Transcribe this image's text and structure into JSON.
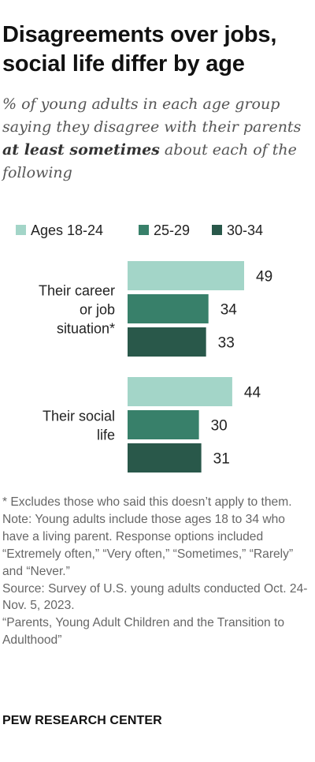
{
  "title": "Disagreements over jobs, social life differ by age",
  "subtitle": {
    "before": "% of young adults in each age group saying they disagree with their parents ",
    "emphasis": "at least sometimes",
    "after": " about each of the following"
  },
  "chart_data": {
    "type": "bar",
    "orientation": "horizontal",
    "categories": [
      "Their career or job situation*",
      "Their social life"
    ],
    "category_lines": [
      [
        "Their career",
        "or job",
        "situation*"
      ],
      [
        "Their social",
        "life"
      ]
    ],
    "series": [
      {
        "name": "Ages 18-24",
        "color": "#a3d5c8",
        "values": [
          49,
          44
        ]
      },
      {
        "name": "25-29",
        "color": "#38806a",
        "values": [
          34,
          30
        ]
      },
      {
        "name": "30-34",
        "color": "#29584a",
        "values": [
          33,
          31
        ]
      }
    ],
    "legend_position": "top",
    "grid": false,
    "value_labels": true
  },
  "notes": [
    "* Excludes those who said this doesn’t apply to them.",
    "Note: Young adults include those ages 18 to 34 who have a living parent. Response options included “Extremely often,” “Very often,” “Sometimes,” “Rarely” and “Never.”",
    "Source: Survey of U.S. young adults conducted Oct. 24-Nov. 5, 2023.",
    "“Parents, Young Adult Children and the Transition to Adulthood”"
  ],
  "source_name": "PEW RESEARCH CENTER"
}
